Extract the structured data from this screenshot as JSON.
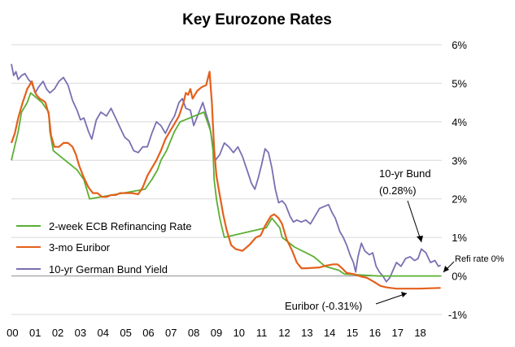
{
  "chart_data": {
    "type": "line",
    "title": "Key Eurozone Rates",
    "xlabel": "",
    "ylabel": "",
    "x_tick_labels": [
      "00",
      "01",
      "02",
      "03",
      "04",
      "05",
      "06",
      "07",
      "08",
      "09",
      "10",
      "11",
      "12",
      "13",
      "14",
      "15",
      "16",
      "17",
      "18"
    ],
    "x_range": [
      2000,
      2019
    ],
    "y_tick_labels": [
      "-1%",
      "0%",
      "1%",
      "2%",
      "3%",
      "4%",
      "5%",
      "6%"
    ],
    "y_ticks": [
      -1,
      0,
      1,
      2,
      3,
      4,
      5,
      6
    ],
    "ylim": [
      -1,
      6
    ],
    "grid": true,
    "legend_position": "left",
    "series": [
      {
        "name": "2-week ECB Refinancing Rate",
        "color": "#5aaf32",
        "points": [
          [
            2000.0,
            3.0
          ],
          [
            2000.1,
            3.25
          ],
          [
            2000.2,
            3.5
          ],
          [
            2000.3,
            3.75
          ],
          [
            2000.45,
            4.25
          ],
          [
            2000.7,
            4.5
          ],
          [
            2000.85,
            4.75
          ],
          [
            2001.35,
            4.5
          ],
          [
            2001.65,
            4.25
          ],
          [
            2001.7,
            3.75
          ],
          [
            2001.85,
            3.25
          ],
          [
            2002.9,
            2.75
          ],
          [
            2003.2,
            2.5
          ],
          [
            2003.45,
            2.0
          ],
          [
            2005.9,
            2.25
          ],
          [
            2006.2,
            2.5
          ],
          [
            2006.45,
            2.75
          ],
          [
            2006.6,
            3.0
          ],
          [
            2006.85,
            3.25
          ],
          [
            2007.2,
            3.75
          ],
          [
            2007.45,
            4.0
          ],
          [
            2008.5,
            4.25
          ],
          [
            2008.8,
            3.75
          ],
          [
            2008.9,
            3.25
          ],
          [
            2008.95,
            2.5
          ],
          [
            2009.05,
            2.0
          ],
          [
            2009.2,
            1.5
          ],
          [
            2009.3,
            1.25
          ],
          [
            2009.4,
            1.0
          ],
          [
            2011.25,
            1.25
          ],
          [
            2011.5,
            1.5
          ],
          [
            2011.85,
            1.25
          ],
          [
            2011.95,
            1.0
          ],
          [
            2012.5,
            0.75
          ],
          [
            2013.35,
            0.5
          ],
          [
            2013.85,
            0.25
          ],
          [
            2014.45,
            0.15
          ],
          [
            2014.7,
            0.05
          ],
          [
            2016.2,
            0.0
          ],
          [
            2018.95,
            0.0
          ]
        ]
      },
      {
        "name": "3-mo Euribor",
        "color": "#e4601c",
        "points": [
          [
            2000.0,
            3.45
          ],
          [
            2000.15,
            3.7
          ],
          [
            2000.3,
            4.1
          ],
          [
            2000.5,
            4.5
          ],
          [
            2000.7,
            4.85
          ],
          [
            2000.9,
            5.05
          ],
          [
            2001.0,
            4.85
          ],
          [
            2001.1,
            4.7
          ],
          [
            2001.25,
            4.6
          ],
          [
            2001.4,
            4.55
          ],
          [
            2001.5,
            4.5
          ],
          [
            2001.65,
            4.2
          ],
          [
            2001.75,
            3.65
          ],
          [
            2001.9,
            3.35
          ],
          [
            2002.1,
            3.35
          ],
          [
            2002.3,
            3.45
          ],
          [
            2002.5,
            3.45
          ],
          [
            2002.7,
            3.35
          ],
          [
            2002.85,
            3.15
          ],
          [
            2003.0,
            2.85
          ],
          [
            2003.2,
            2.55
          ],
          [
            2003.4,
            2.3
          ],
          [
            2003.6,
            2.15
          ],
          [
            2003.8,
            2.15
          ],
          [
            2004.0,
            2.05
          ],
          [
            2004.2,
            2.05
          ],
          [
            2004.4,
            2.1
          ],
          [
            2004.6,
            2.1
          ],
          [
            2004.8,
            2.15
          ],
          [
            2005.0,
            2.15
          ],
          [
            2005.3,
            2.15
          ],
          [
            2005.6,
            2.12
          ],
          [
            2005.8,
            2.3
          ],
          [
            2006.0,
            2.6
          ],
          [
            2006.2,
            2.8
          ],
          [
            2006.4,
            3.0
          ],
          [
            2006.6,
            3.25
          ],
          [
            2006.8,
            3.55
          ],
          [
            2007.0,
            3.75
          ],
          [
            2007.2,
            3.95
          ],
          [
            2007.4,
            4.15
          ],
          [
            2007.6,
            4.5
          ],
          [
            2007.7,
            4.75
          ],
          [
            2007.8,
            4.7
          ],
          [
            2007.9,
            4.85
          ],
          [
            2008.0,
            4.6
          ],
          [
            2008.2,
            4.8
          ],
          [
            2008.4,
            4.9
          ],
          [
            2008.6,
            4.95
          ],
          [
            2008.75,
            5.3
          ],
          [
            2008.85,
            4.5
          ],
          [
            2008.95,
            3.3
          ],
          [
            2009.05,
            2.6
          ],
          [
            2009.2,
            2.1
          ],
          [
            2009.35,
            1.6
          ],
          [
            2009.5,
            1.2
          ],
          [
            2009.7,
            0.8
          ],
          [
            2009.9,
            0.7
          ],
          [
            2010.2,
            0.65
          ],
          [
            2010.5,
            0.8
          ],
          [
            2010.8,
            1.0
          ],
          [
            2011.0,
            1.05
          ],
          [
            2011.2,
            1.3
          ],
          [
            2011.45,
            1.55
          ],
          [
            2011.6,
            1.6
          ],
          [
            2011.8,
            1.5
          ],
          [
            2011.95,
            1.35
          ],
          [
            2012.15,
            0.95
          ],
          [
            2012.4,
            0.65
          ],
          [
            2012.6,
            0.35
          ],
          [
            2012.8,
            0.2
          ],
          [
            2013.0,
            0.2
          ],
          [
            2013.3,
            0.21
          ],
          [
            2013.6,
            0.22
          ],
          [
            2013.9,
            0.27
          ],
          [
            2014.2,
            0.3
          ],
          [
            2014.4,
            0.3
          ],
          [
            2014.6,
            0.2
          ],
          [
            2014.8,
            0.08
          ],
          [
            2015.1,
            0.05
          ],
          [
            2015.4,
            -0.01
          ],
          [
            2015.7,
            -0.05
          ],
          [
            2016.0,
            -0.15
          ],
          [
            2016.3,
            -0.26
          ],
          [
            2016.6,
            -0.3
          ],
          [
            2017.0,
            -0.33
          ],
          [
            2017.5,
            -0.33
          ],
          [
            2018.0,
            -0.33
          ],
          [
            2018.5,
            -0.32
          ],
          [
            2018.95,
            -0.31
          ]
        ]
      },
      {
        "name": "10-yr German Bund Yield",
        "color": "#7a6fb2",
        "points": [
          [
            2000.0,
            5.5
          ],
          [
            2000.1,
            5.2
          ],
          [
            2000.2,
            5.3
          ],
          [
            2000.3,
            5.1
          ],
          [
            2000.45,
            5.2
          ],
          [
            2000.6,
            5.25
          ],
          [
            2000.75,
            5.1
          ],
          [
            2000.9,
            5.0
          ],
          [
            2001.05,
            4.75
          ],
          [
            2001.2,
            4.9
          ],
          [
            2001.4,
            5.05
          ],
          [
            2001.55,
            4.85
          ],
          [
            2001.7,
            4.75
          ],
          [
            2001.9,
            4.85
          ],
          [
            2002.1,
            5.05
          ],
          [
            2002.3,
            5.15
          ],
          [
            2002.5,
            4.95
          ],
          [
            2002.7,
            4.55
          ],
          [
            2002.9,
            4.3
          ],
          [
            2003.05,
            4.05
          ],
          [
            2003.2,
            4.1
          ],
          [
            2003.4,
            3.75
          ],
          [
            2003.55,
            3.55
          ],
          [
            2003.75,
            4.05
          ],
          [
            2003.95,
            4.25
          ],
          [
            2004.2,
            4.15
          ],
          [
            2004.4,
            4.35
          ],
          [
            2004.6,
            4.1
          ],
          [
            2004.8,
            3.85
          ],
          [
            2005.0,
            3.6
          ],
          [
            2005.2,
            3.5
          ],
          [
            2005.4,
            3.25
          ],
          [
            2005.6,
            3.2
          ],
          [
            2005.8,
            3.35
          ],
          [
            2006.0,
            3.35
          ],
          [
            2006.2,
            3.7
          ],
          [
            2006.4,
            4.0
          ],
          [
            2006.6,
            3.9
          ],
          [
            2006.8,
            3.7
          ],
          [
            2007.0,
            3.95
          ],
          [
            2007.2,
            4.15
          ],
          [
            2007.4,
            4.5
          ],
          [
            2007.55,
            4.6
          ],
          [
            2007.7,
            4.35
          ],
          [
            2007.9,
            4.3
          ],
          [
            2008.05,
            3.9
          ],
          [
            2008.25,
            4.2
          ],
          [
            2008.45,
            4.5
          ],
          [
            2008.6,
            4.2
          ],
          [
            2008.75,
            3.9
          ],
          [
            2008.9,
            3.35
          ],
          [
            2009.0,
            3.0
          ],
          [
            2009.2,
            3.15
          ],
          [
            2009.4,
            3.45
          ],
          [
            2009.6,
            3.35
          ],
          [
            2009.8,
            3.2
          ],
          [
            2010.0,
            3.35
          ],
          [
            2010.2,
            3.1
          ],
          [
            2010.4,
            2.75
          ],
          [
            2010.6,
            2.4
          ],
          [
            2010.75,
            2.25
          ],
          [
            2010.9,
            2.55
          ],
          [
            2011.05,
            2.9
          ],
          [
            2011.2,
            3.3
          ],
          [
            2011.35,
            3.2
          ],
          [
            2011.5,
            2.8
          ],
          [
            2011.65,
            2.25
          ],
          [
            2011.8,
            1.9
          ],
          [
            2011.95,
            1.95
          ],
          [
            2012.1,
            1.85
          ],
          [
            2012.3,
            1.55
          ],
          [
            2012.45,
            1.4
          ],
          [
            2012.6,
            1.45
          ],
          [
            2012.8,
            1.4
          ],
          [
            2013.0,
            1.45
          ],
          [
            2013.2,
            1.35
          ],
          [
            2013.4,
            1.55
          ],
          [
            2013.6,
            1.75
          ],
          [
            2013.8,
            1.8
          ],
          [
            2014.0,
            1.85
          ],
          [
            2014.15,
            1.65
          ],
          [
            2014.3,
            1.5
          ],
          [
            2014.5,
            1.15
          ],
          [
            2014.65,
            1.0
          ],
          [
            2014.8,
            0.8
          ],
          [
            2014.95,
            0.55
          ],
          [
            2015.1,
            0.35
          ],
          [
            2015.2,
            0.1
          ],
          [
            2015.3,
            0.5
          ],
          [
            2015.45,
            0.85
          ],
          [
            2015.6,
            0.65
          ],
          [
            2015.8,
            0.55
          ],
          [
            2015.95,
            0.6
          ],
          [
            2016.1,
            0.25
          ],
          [
            2016.25,
            0.1
          ],
          [
            2016.4,
            0.0
          ],
          [
            2016.55,
            -0.15
          ],
          [
            2016.7,
            -0.05
          ],
          [
            2016.85,
            0.15
          ],
          [
            2017.0,
            0.35
          ],
          [
            2017.2,
            0.25
          ],
          [
            2017.4,
            0.45
          ],
          [
            2017.6,
            0.5
          ],
          [
            2017.8,
            0.4
          ],
          [
            2017.95,
            0.45
          ],
          [
            2018.1,
            0.7
          ],
          [
            2018.3,
            0.6
          ],
          [
            2018.5,
            0.35
          ],
          [
            2018.7,
            0.4
          ],
          [
            2018.85,
            0.25
          ],
          [
            2018.95,
            0.28
          ]
        ]
      }
    ],
    "annotations": [
      {
        "text": "10-yr Bund",
        "text2": "(0.28%)"
      },
      {
        "text": "Refi rate 0%"
      },
      {
        "text": "Euribor  (-0.31%)"
      }
    ]
  }
}
